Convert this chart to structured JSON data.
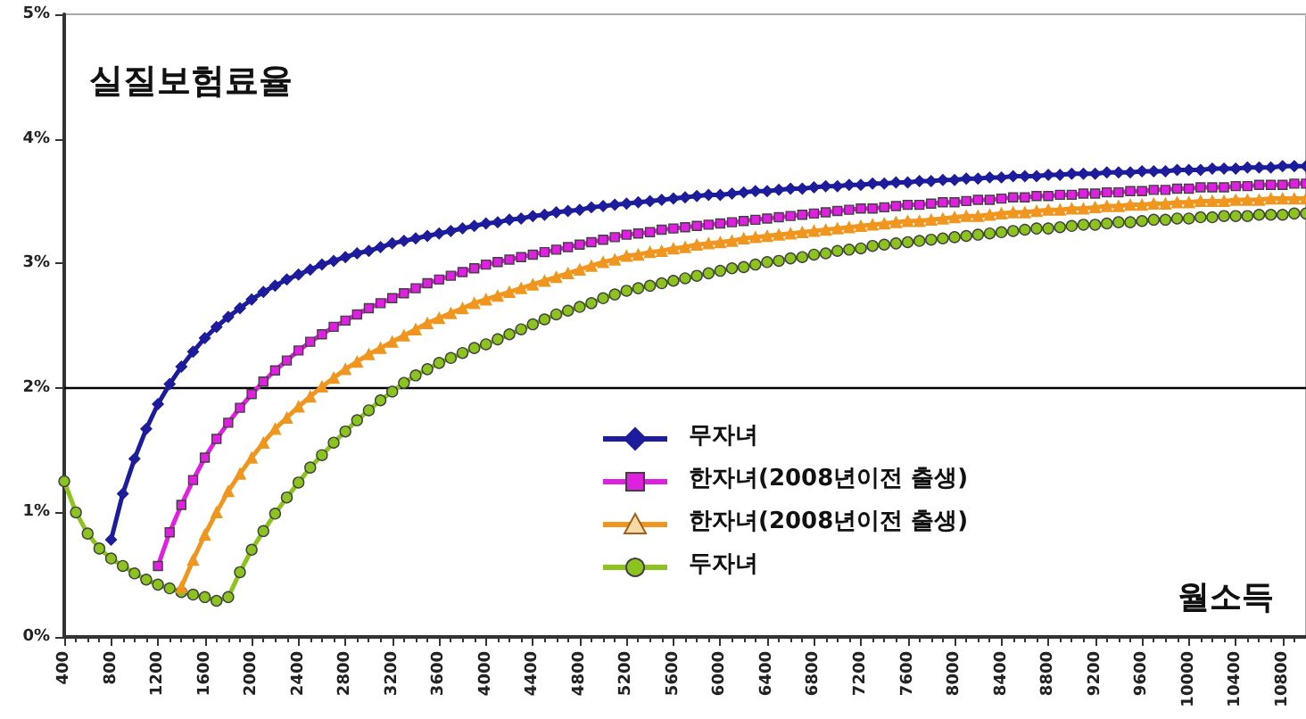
{
  "chart_data": {
    "type": "line",
    "ylabel": "실질보험료율",
    "xlabel": "월소득",
    "x": [
      400,
      500,
      600,
      700,
      800,
      900,
      1000,
      1100,
      1200,
      1300,
      1400,
      1500,
      1600,
      1700,
      1800,
      1900,
      2000,
      2100,
      2200,
      2300,
      2400,
      2500,
      2600,
      2700,
      2800,
      2900,
      3000,
      3100,
      3200,
      3300,
      3400,
      3500,
      3600,
      3700,
      3800,
      3900,
      4000,
      4100,
      4200,
      4300,
      4400,
      4500,
      4600,
      4700,
      4800,
      4900,
      5000,
      5100,
      5200,
      5300,
      5400,
      5500,
      5600,
      5700,
      5800,
      5900,
      6000,
      6100,
      6200,
      6300,
      6400,
      6500,
      6600,
      6700,
      6800,
      6900,
      7000,
      7100,
      7200,
      7300,
      7400,
      7500,
      7600,
      7700,
      7800,
      7900,
      8000,
      8100,
      8200,
      8300,
      8400,
      8500,
      8600,
      8700,
      8800,
      8900,
      9000,
      9100,
      9200,
      9300,
      9400,
      9500,
      9600,
      9700,
      9800,
      9900,
      10000,
      10100,
      10200,
      10300,
      10400,
      10500,
      10600,
      10700,
      10800,
      10900,
      11000
    ],
    "series": [
      {
        "name": "무자녀",
        "color": "#1c1c9c",
        "marker": "diamond",
        "values": [
          null,
          null,
          null,
          null,
          0.78,
          1.15,
          1.43,
          1.67,
          1.87,
          2.03,
          2.17,
          2.29,
          2.4,
          2.49,
          2.57,
          2.64,
          2.71,
          2.77,
          2.82,
          2.87,
          2.91,
          2.95,
          2.99,
          3.02,
          3.05,
          3.08,
          3.1,
          3.13,
          3.16,
          3.18,
          3.2,
          3.22,
          3.24,
          3.26,
          3.28,
          3.3,
          3.32,
          3.33,
          3.35,
          3.36,
          3.38,
          3.39,
          3.41,
          3.42,
          3.43,
          3.45,
          3.46,
          3.47,
          3.48,
          3.49,
          3.5,
          3.51,
          3.52,
          3.53,
          3.54,
          3.55,
          3.55,
          3.56,
          3.57,
          3.58,
          3.58,
          3.59,
          3.6,
          3.6,
          3.61,
          3.62,
          3.62,
          3.63,
          3.63,
          3.64,
          3.64,
          3.65,
          3.65,
          3.66,
          3.66,
          3.67,
          3.67,
          3.68,
          3.68,
          3.69,
          3.69,
          3.7,
          3.7,
          3.7,
          3.71,
          3.71,
          3.72,
          3.72,
          3.72,
          3.73,
          3.73,
          3.73,
          3.74,
          3.74,
          3.74,
          3.75,
          3.75,
          3.75,
          3.76,
          3.76,
          3.76,
          3.77,
          3.77,
          3.77,
          3.78,
          3.78,
          3.78
        ]
      },
      {
        "name": "한자녀(2008년이전 출생)",
        "color": "#e020e0",
        "marker": "square",
        "values": [
          null,
          null,
          null,
          null,
          null,
          null,
          null,
          null,
          0.57,
          0.84,
          1.06,
          1.26,
          1.44,
          1.59,
          1.72,
          1.84,
          1.95,
          2.05,
          2.14,
          2.22,
          2.3,
          2.37,
          2.43,
          2.49,
          2.54,
          2.59,
          2.64,
          2.68,
          2.72,
          2.76,
          2.8,
          2.84,
          2.87,
          2.9,
          2.93,
          2.96,
          2.99,
          3.01,
          3.03,
          3.05,
          3.07,
          3.09,
          3.11,
          3.13,
          3.15,
          3.17,
          3.19,
          3.21,
          3.23,
          3.24,
          3.25,
          3.27,
          3.28,
          3.29,
          3.3,
          3.31,
          3.32,
          3.33,
          3.34,
          3.35,
          3.36,
          3.37,
          3.38,
          3.39,
          3.4,
          3.41,
          3.42,
          3.43,
          3.44,
          3.44,
          3.45,
          3.46,
          3.47,
          3.47,
          3.48,
          3.49,
          3.49,
          3.5,
          3.51,
          3.51,
          3.52,
          3.53,
          3.53,
          3.54,
          3.54,
          3.55,
          3.55,
          3.56,
          3.56,
          3.57,
          3.57,
          3.58,
          3.58,
          3.59,
          3.59,
          3.6,
          3.6,
          3.61,
          3.61,
          3.61,
          3.62,
          3.62,
          3.63,
          3.63,
          3.63,
          3.64,
          3.64
        ]
      },
      {
        "name": "한자녀(2008년이전 출생)",
        "color": "#f0961e",
        "marker": "triangle",
        "values": [
          null,
          null,
          null,
          null,
          null,
          null,
          null,
          null,
          null,
          null,
          0.4,
          0.62,
          0.82,
          1.0,
          1.17,
          1.31,
          1.44,
          1.56,
          1.67,
          1.76,
          1.85,
          1.93,
          2.01,
          2.08,
          2.15,
          2.21,
          2.27,
          2.32,
          2.37,
          2.42,
          2.47,
          2.52,
          2.56,
          2.6,
          2.64,
          2.68,
          2.71,
          2.74,
          2.77,
          2.8,
          2.83,
          2.86,
          2.89,
          2.92,
          2.95,
          2.98,
          3.01,
          3.03,
          3.06,
          3.07,
          3.09,
          3.1,
          3.12,
          3.13,
          3.15,
          3.16,
          3.17,
          3.18,
          3.2,
          3.21,
          3.22,
          3.23,
          3.24,
          3.25,
          3.26,
          3.27,
          3.28,
          3.29,
          3.3,
          3.31,
          3.32,
          3.33,
          3.34,
          3.34,
          3.35,
          3.36,
          3.37,
          3.38,
          3.38,
          3.39,
          3.4,
          3.41,
          3.41,
          3.42,
          3.43,
          3.43,
          3.44,
          3.44,
          3.45,
          3.46,
          3.46,
          3.47,
          3.47,
          3.48,
          3.48,
          3.49,
          3.49,
          3.5,
          3.5,
          3.5,
          3.51,
          3.51,
          3.51,
          3.52,
          3.52,
          3.52,
          3.52
        ]
      },
      {
        "name": "두자녀",
        "color": "#8cc31e",
        "marker": "circle",
        "values": [
          1.25,
          1.0,
          0.83,
          0.71,
          0.63,
          0.57,
          0.51,
          0.46,
          0.42,
          0.39,
          0.36,
          0.34,
          0.32,
          0.29,
          0.32,
          0.52,
          0.7,
          0.85,
          0.99,
          1.12,
          1.24,
          1.36,
          1.46,
          1.56,
          1.65,
          1.74,
          1.82,
          1.9,
          1.97,
          2.04,
          2.1,
          2.15,
          2.2,
          2.24,
          2.28,
          2.32,
          2.35,
          2.39,
          2.43,
          2.47,
          2.51,
          2.55,
          2.59,
          2.62,
          2.65,
          2.68,
          2.72,
          2.75,
          2.78,
          2.8,
          2.82,
          2.84,
          2.86,
          2.88,
          2.9,
          2.92,
          2.94,
          2.96,
          2.97,
          2.99,
          3.01,
          3.02,
          3.04,
          3.05,
          3.07,
          3.08,
          3.1,
          3.11,
          3.12,
          3.14,
          3.15,
          3.16,
          3.17,
          3.18,
          3.19,
          3.2,
          3.21,
          3.22,
          3.23,
          3.24,
          3.25,
          3.26,
          3.27,
          3.28,
          3.28,
          3.29,
          3.3,
          3.31,
          3.31,
          3.32,
          3.33,
          3.33,
          3.34,
          3.35,
          3.35,
          3.36,
          3.36,
          3.37,
          3.37,
          3.38,
          3.38,
          3.38,
          3.39,
          3.39,
          3.39,
          3.4,
          3.4
        ]
      }
    ],
    "xlim": [
      400,
      11000
    ],
    "xticks": [
      400,
      800,
      1200,
      1600,
      2000,
      2400,
      2800,
      3200,
      3600,
      4000,
      4400,
      4800,
      5200,
      5600,
      6000,
      6400,
      6800,
      7200,
      7600,
      8000,
      8400,
      8800,
      9200,
      9600,
      10000,
      10400,
      10800
    ],
    "ylim": [
      0,
      5
    ],
    "yticks": [
      {
        "value": 0,
        "label": "0%"
      },
      {
        "value": 1,
        "label": "1%"
      },
      {
        "value": 2,
        "label": "2%"
      },
      {
        "value": 3,
        "label": "3%"
      },
      {
        "value": 4,
        "label": "4%"
      },
      {
        "value": 5,
        "label": "5%"
      }
    ],
    "ref_lines": [
      {
        "axis": "y",
        "value": 2,
        "color": "#000000"
      }
    ],
    "grid": false,
    "legend": "right"
  }
}
